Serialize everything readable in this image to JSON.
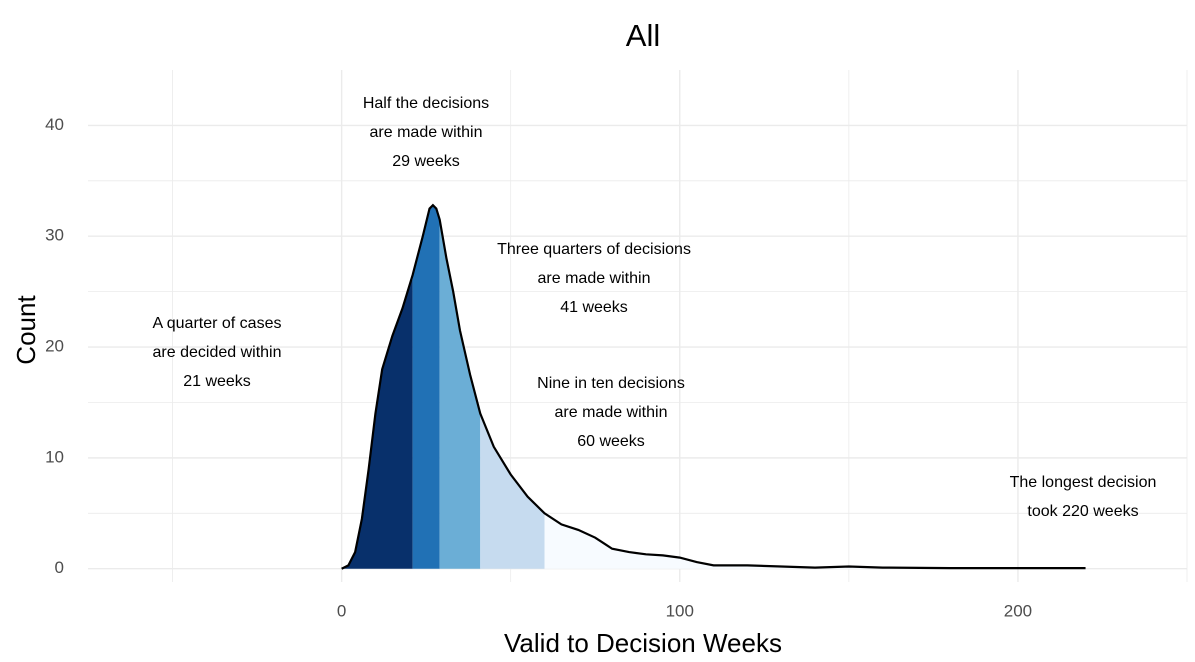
{
  "chart_data": {
    "type": "area",
    "title": "All",
    "x_label": "Valid to Decision Weeks",
    "y_label": "Count",
    "x": [
      0,
      2,
      4,
      6,
      8,
      10,
      12,
      15,
      18,
      21,
      24,
      26,
      27,
      28,
      29,
      31,
      33,
      35,
      38,
      41,
      45,
      50,
      55,
      60,
      65,
      70,
      75,
      78,
      80,
      85,
      90,
      95,
      100,
      105,
      110,
      120,
      130,
      140,
      150,
      160,
      180,
      200,
      220
    ],
    "values": [
      0,
      0.3,
      1.5,
      4.5,
      9,
      14,
      18,
      21,
      23.5,
      26.5,
      30,
      32.5,
      32.8,
      32.5,
      31.5,
      28,
      25,
      21.5,
      17.5,
      14,
      11,
      8.5,
      6.5,
      5,
      4,
      3.5,
      2.8,
      2.2,
      1.8,
      1.5,
      1.3,
      1.2,
      1,
      0.6,
      0.3,
      0.3,
      0.2,
      0.1,
      0.2,
      0.1,
      0.05,
      0.05,
      0.05
    ],
    "line_color": "#000000",
    "quantiles": [
      21,
      29,
      41,
      60,
      220
    ],
    "band_colors": [
      "#08306b",
      "#2171b5",
      "#6baed6",
      "#c6dbef",
      "#f7fbff"
    ],
    "xlim": [
      -75,
      250
    ],
    "ylim": [
      -1.2,
      45
    ],
    "xticks": [
      0,
      100,
      200
    ],
    "yticks": [
      0,
      10,
      20,
      30,
      40
    ],
    "xminor": [
      -50,
      50,
      150,
      250
    ],
    "yminor": [
      5,
      15,
      25,
      35
    ],
    "grid": true,
    "grid_color": "#ebebeb",
    "annotations": [
      {
        "lines": [
          "A quarter of cases",
          "are decided within",
          "21 weeks"
        ]
      },
      {
        "lines": [
          "Half the decisions",
          "are made within",
          "29 weeks"
        ]
      },
      {
        "lines": [
          "Three quarters of decisions",
          "are made within",
          "41 weeks"
        ]
      },
      {
        "lines": [
          "Nine in ten decisions",
          "are made within",
          "60 weeks"
        ]
      },
      {
        "lines": [
          "The longest decision",
          "took 220 weeks"
        ]
      }
    ]
  }
}
